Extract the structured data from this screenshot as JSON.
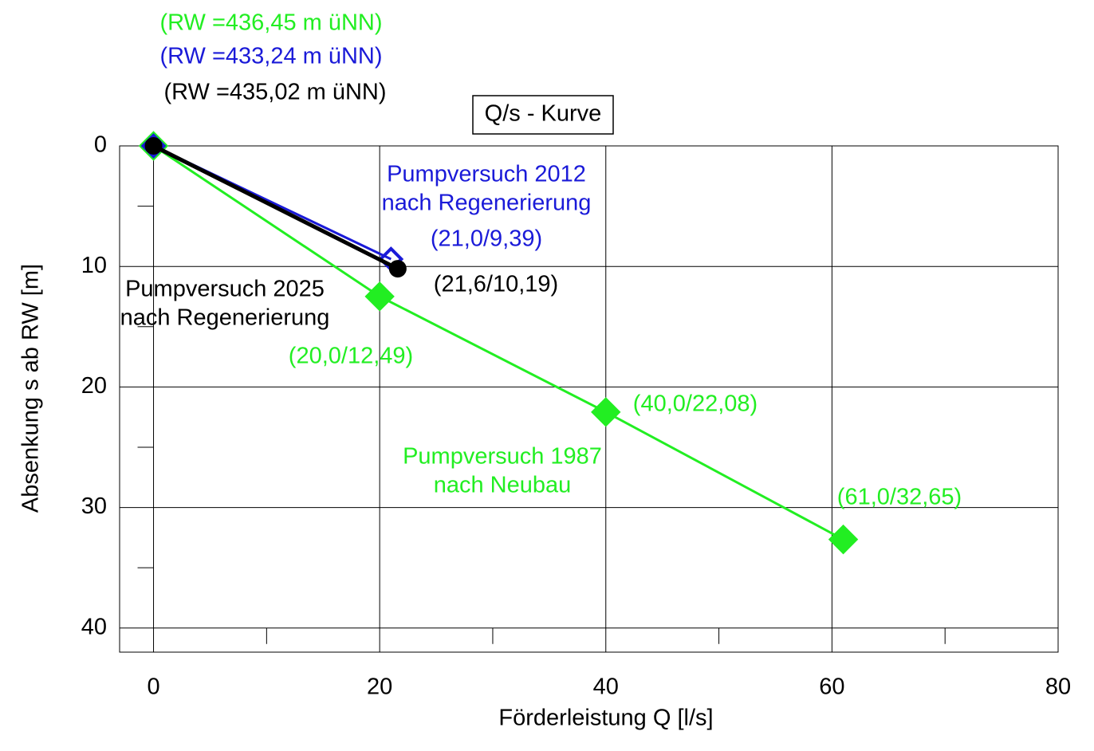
{
  "chart_data": {
    "type": "line",
    "title": "Q/s - Kurve",
    "x_label": "Förderleistung Q [l/s]",
    "y_label": "Absenkung s ab RW [m]",
    "xlim": [
      -3,
      80
    ],
    "ylim": [
      0,
      42
    ],
    "y_inverted": true,
    "xticks": [
      0,
      20,
      40,
      60,
      80
    ],
    "yticks": [
      0,
      10,
      20,
      30,
      40
    ],
    "xminor_ticks": [
      10,
      30,
      50,
      70
    ],
    "yminor_ticks": [
      5,
      15,
      25,
      35
    ],
    "grid": true,
    "series": [
      {
        "color": "#22ee22",
        "marker": "diamond-filled",
        "x": [
          0,
          20,
          40,
          61
        ],
        "y": [
          0,
          12.49,
          22.08,
          32.65
        ]
      },
      {
        "color": "#1a1ad8",
        "marker": "diamond-open",
        "x": [
          0,
          21
        ],
        "y": [
          0,
          9.39
        ]
      },
      {
        "color": "#000000",
        "marker": "circle",
        "x": [
          0,
          21.6
        ],
        "y": [
          0,
          10.19
        ]
      }
    ],
    "annotations": [
      {
        "text": [
          "(RW =436,45 m üNN)"
        ],
        "color": "#22ee22"
      },
      {
        "text": [
          "(RW =433,24 m üNN)"
        ],
        "color": "#1a1ad8"
      },
      {
        "text": [
          "(RW =435,02 m üNN)"
        ],
        "color": "#000000"
      },
      {
        "text": [
          "Pumpversuch 2012",
          "nach Regenerierung"
        ],
        "color": "#1a1ad8"
      },
      {
        "text": [
          "(21,0/9,39)"
        ],
        "color": "#1a1ad8"
      },
      {
        "text": [
          "(21,6/10,19)"
        ],
        "color": "#000000"
      },
      {
        "text": [
          "Pumpversuch 2025",
          "nach Regenerierung"
        ],
        "color": "#000000"
      },
      {
        "text": [
          "(20,0/12,49)"
        ],
        "color": "#22ee22"
      },
      {
        "text": [
          "(40,0/22,08)"
        ],
        "color": "#22ee22"
      },
      {
        "text": [
          "Pumpversuch 1987",
          "nach Neubau"
        ],
        "color": "#22ee22"
      },
      {
        "text": [
          "(61,0/32,65)"
        ],
        "color": "#22ee22"
      }
    ]
  }
}
